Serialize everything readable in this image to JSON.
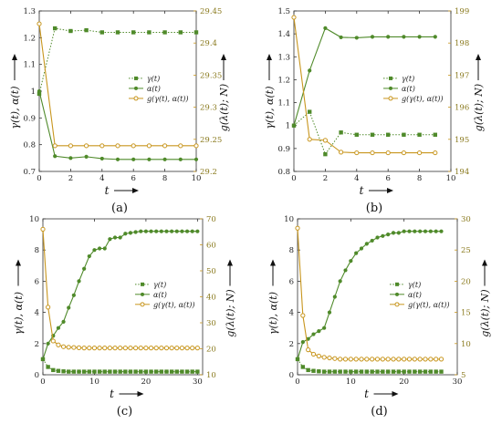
{
  "colors": {
    "gamma": "#4f8a2a",
    "alpha": "#4f8a2a",
    "g": "#c8961e",
    "axis": "#333333",
    "right_axis": "#c8961e"
  },
  "chart_data": [
    {
      "type": "line",
      "caption": "(a)",
      "xlabel": "t",
      "ylabel": "γ(t), α(t)",
      "ylabel_right": "g(λ(t); N)",
      "xlim": [
        0,
        10
      ],
      "ylim": [
        0.7,
        1.3
      ],
      "ylim_right": [
        29.2,
        29.45
      ],
      "xticks": [
        0,
        2,
        4,
        6,
        8,
        10
      ],
      "yticks": [
        0.7,
        0.8,
        0.9,
        1.0,
        1.1,
        1.2,
        1.3
      ],
      "yticklabels": [
        "0.7",
        "0.8",
        "0.9",
        "1",
        "1.1",
        "1.2",
        "1.3"
      ],
      "yticks_right": [
        29.2,
        29.25,
        29.3,
        29.35,
        29.4,
        29.45
      ],
      "yticklabels_right": [
        "29.2",
        "29.25",
        "29.3",
        "29.35",
        "29.4",
        "29.45"
      ],
      "legend_position": "middle-right",
      "series": [
        {
          "name": "γ(t)",
          "axis": "left",
          "style": "dotted-square",
          "x": [
            0,
            1,
            2,
            3,
            4,
            5,
            6,
            7,
            8,
            9,
            10
          ],
          "y": [
            0.99,
            1.235,
            1.225,
            1.228,
            1.22,
            1.22,
            1.22,
            1.22,
            1.22,
            1.22,
            1.22
          ]
        },
        {
          "name": "α(t)",
          "axis": "left",
          "style": "solid-dot",
          "x": [
            0,
            1,
            2,
            3,
            4,
            5,
            6,
            7,
            8,
            9,
            10
          ],
          "y": [
            1.0,
            0.757,
            0.75,
            0.755,
            0.748,
            0.745,
            0.745,
            0.745,
            0.745,
            0.745,
            0.745
          ]
        },
        {
          "name": "g(γ(t), α(t))",
          "axis": "right",
          "style": "solid-circle",
          "x": [
            0,
            1,
            2,
            3,
            4,
            5,
            6,
            7,
            8,
            9,
            10
          ],
          "y": [
            29.43,
            29.24,
            29.24,
            29.24,
            29.24,
            29.24,
            29.24,
            29.24,
            29.24,
            29.24,
            29.24
          ]
        }
      ]
    },
    {
      "type": "line",
      "caption": "(b)",
      "xlabel": "t",
      "ylabel": "γ(t), α(t)",
      "ylabel_right": "g(λ(t); N)",
      "xlim": [
        0,
        10
      ],
      "ylim": [
        0.8,
        1.5
      ],
      "ylim_right": [
        194,
        199
      ],
      "xticks": [
        0,
        2,
        4,
        6,
        8,
        10
      ],
      "yticks": [
        0.8,
        0.9,
        1.0,
        1.1,
        1.2,
        1.3,
        1.4,
        1.5
      ],
      "yticklabels": [
        "0.8",
        "0.9",
        "1",
        "1.1",
        "1.2",
        "1.3",
        "1.4",
        "1.5"
      ],
      "yticks_right": [
        194,
        195,
        196,
        197,
        198,
        199
      ],
      "yticklabels_right": [
        "194",
        "195",
        "196",
        "197",
        "198",
        "199"
      ],
      "legend_position": "middle-right",
      "series": [
        {
          "name": "γ(t)",
          "axis": "left",
          "style": "dotted-square",
          "x": [
            0,
            1,
            2,
            3,
            4,
            5,
            6,
            7,
            8,
            9
          ],
          "y": [
            1.0,
            1.06,
            0.875,
            0.97,
            0.96,
            0.96,
            0.96,
            0.96,
            0.96,
            0.96
          ]
        },
        {
          "name": "α(t)",
          "axis": "left",
          "style": "solid-dot",
          "x": [
            0,
            1,
            2,
            3,
            4,
            5,
            6,
            7,
            8,
            9
          ],
          "y": [
            1.0,
            1.24,
            1.425,
            1.385,
            1.383,
            1.387,
            1.387,
            1.387,
            1.387,
            1.387
          ]
        },
        {
          "name": "g(γ(t), α(t))",
          "axis": "right",
          "style": "solid-circle",
          "x": [
            0,
            1,
            2,
            3,
            4,
            5,
            6,
            7,
            8,
            9
          ],
          "y": [
            198.8,
            195.0,
            194.97,
            194.6,
            194.58,
            194.58,
            194.58,
            194.58,
            194.58,
            194.58
          ]
        }
      ]
    },
    {
      "type": "line",
      "caption": "(c)",
      "xlabel": "t",
      "ylabel": "γ(t), α(t)",
      "ylabel_right": "g(λ(t); N)",
      "xlim": [
        0,
        31
      ],
      "ylim": [
        0,
        10
      ],
      "ylim_right": [
        10,
        70
      ],
      "xticks": [
        0,
        10,
        20,
        30
      ],
      "yticks": [
        0,
        2,
        4,
        6,
        8,
        10
      ],
      "yticklabels": [
        "0",
        "2",
        "4",
        "6",
        "8",
        "10"
      ],
      "yticks_right": [
        10,
        20,
        30,
        40,
        50,
        60,
        70
      ],
      "yticklabels_right": [
        "10",
        "20",
        "30",
        "40",
        "50",
        "60",
        "70"
      ],
      "legend_position": "middle-right",
      "series": [
        {
          "name": "γ(t)",
          "axis": "left",
          "style": "dotted-square",
          "x": [
            0,
            1,
            2,
            3,
            4,
            5,
            6,
            7,
            8,
            9,
            10,
            11,
            12,
            13,
            14,
            15,
            16,
            17,
            18,
            19,
            20,
            21,
            22,
            23,
            24,
            25,
            26,
            27,
            28,
            29,
            30
          ],
          "y": [
            1.0,
            0.5,
            0.3,
            0.25,
            0.22,
            0.2,
            0.2,
            0.2,
            0.2,
            0.2,
            0.2,
            0.2,
            0.2,
            0.2,
            0.2,
            0.2,
            0.2,
            0.2,
            0.2,
            0.2,
            0.2,
            0.2,
            0.2,
            0.2,
            0.2,
            0.2,
            0.2,
            0.2,
            0.2,
            0.2,
            0.2
          ]
        },
        {
          "name": "α(t)",
          "axis": "left",
          "style": "solid-dot",
          "x": [
            0,
            1,
            2,
            3,
            4,
            5,
            6,
            7,
            8,
            9,
            10,
            11,
            12,
            13,
            14,
            15,
            16,
            17,
            18,
            19,
            20,
            21,
            22,
            23,
            24,
            25,
            26,
            27,
            28,
            29,
            30
          ],
          "y": [
            1.0,
            2.0,
            2.5,
            3.0,
            3.4,
            4.3,
            5.1,
            6.0,
            6.8,
            7.6,
            8.0,
            8.1,
            8.1,
            8.7,
            8.8,
            8.8,
            9.05,
            9.1,
            9.15,
            9.2,
            9.2,
            9.2,
            9.2,
            9.2,
            9.2,
            9.2,
            9.2,
            9.2,
            9.2,
            9.2,
            9.2
          ]
        },
        {
          "name": "g(γ(t), α(t))",
          "axis": "right",
          "style": "solid-circle",
          "x": [
            0,
            1,
            2,
            3,
            4,
            5,
            6,
            7,
            8,
            9,
            10,
            11,
            12,
            13,
            14,
            15,
            16,
            17,
            18,
            19,
            20,
            21,
            22,
            23,
            24,
            25,
            26,
            27,
            28,
            29,
            30
          ],
          "y": [
            66,
            36,
            23,
            21.5,
            20.8,
            20.6,
            20.5,
            20.4,
            20.3,
            20.3,
            20.3,
            20.3,
            20.3,
            20.3,
            20.3,
            20.3,
            20.3,
            20.3,
            20.3,
            20.3,
            20.3,
            20.3,
            20.3,
            20.3,
            20.3,
            20.3,
            20.3,
            20.3,
            20.3,
            20.3,
            20.3
          ]
        }
      ]
    },
    {
      "type": "line",
      "caption": "(d)",
      "xlabel": "t",
      "ylabel": "γ(t), α(t)",
      "ylabel_right": "g(λ(t); N)",
      "xlim": [
        0,
        30
      ],
      "ylim": [
        0,
        10
      ],
      "ylim_right": [
        5,
        30
      ],
      "xticks": [
        0,
        10,
        20,
        30
      ],
      "yticks": [
        0,
        2,
        4,
        6,
        8,
        10
      ],
      "yticklabels": [
        "0",
        "2",
        "4",
        "6",
        "8",
        "10"
      ],
      "yticks_right": [
        5,
        10,
        15,
        20,
        25,
        30
      ],
      "yticklabels_right": [
        "5",
        "10",
        "15",
        "20",
        "25",
        "30"
      ],
      "legend_position": "middle-right",
      "series": [
        {
          "name": "γ(t)",
          "axis": "left",
          "style": "dotted-square",
          "x": [
            0,
            1,
            2,
            3,
            4,
            5,
            6,
            7,
            8,
            9,
            10,
            11,
            12,
            13,
            14,
            15,
            16,
            17,
            18,
            19,
            20,
            21,
            22,
            23,
            24,
            25,
            26,
            27
          ],
          "y": [
            1.0,
            0.5,
            0.3,
            0.25,
            0.22,
            0.2,
            0.2,
            0.2,
            0.2,
            0.2,
            0.2,
            0.2,
            0.2,
            0.2,
            0.2,
            0.2,
            0.2,
            0.2,
            0.2,
            0.2,
            0.2,
            0.2,
            0.2,
            0.2,
            0.2,
            0.2,
            0.2,
            0.2
          ]
        },
        {
          "name": "α(t)",
          "axis": "left",
          "style": "solid-dot",
          "x": [
            0,
            1,
            2,
            3,
            4,
            5,
            6,
            7,
            8,
            9,
            10,
            11,
            12,
            13,
            14,
            15,
            16,
            17,
            18,
            19,
            20,
            21,
            22,
            23,
            24,
            25,
            26,
            27
          ],
          "y": [
            1.0,
            2.1,
            2.3,
            2.6,
            2.8,
            3.0,
            4.0,
            5.0,
            6.0,
            6.7,
            7.3,
            7.8,
            8.1,
            8.4,
            8.6,
            8.8,
            8.9,
            9.0,
            9.1,
            9.1,
            9.2,
            9.2,
            9.2,
            9.2,
            9.2,
            9.2,
            9.2,
            9.2
          ]
        },
        {
          "name": "g(γ(t), α(t))",
          "axis": "right",
          "style": "solid-circle",
          "x": [
            0,
            1,
            2,
            3,
            4,
            5,
            6,
            7,
            8,
            9,
            10,
            11,
            12,
            13,
            14,
            15,
            16,
            17,
            18,
            19,
            20,
            21,
            22,
            23,
            24,
            25,
            26,
            27
          ],
          "y": [
            28.5,
            14.5,
            9.0,
            8.3,
            8.0,
            7.8,
            7.7,
            7.6,
            7.5,
            7.5,
            7.5,
            7.5,
            7.5,
            7.5,
            7.5,
            7.5,
            7.5,
            7.5,
            7.5,
            7.5,
            7.5,
            7.5,
            7.5,
            7.5,
            7.5,
            7.5,
            7.5,
            7.5
          ]
        }
      ]
    }
  ]
}
